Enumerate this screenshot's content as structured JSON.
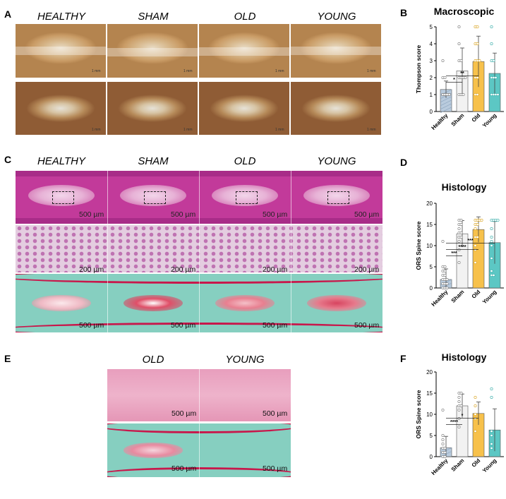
{
  "panels": {
    "A": {
      "label": "A",
      "groups": [
        "HEALTHY",
        "SHAM",
        "OLD",
        "YOUNG"
      ],
      "scale": "1 mm"
    },
    "B": {
      "label": "B"
    },
    "C": {
      "label": "C",
      "groups": [
        "HEALTHY",
        "SHAM",
        "OLD",
        "YOUNG"
      ],
      "scale_top": "500 µm",
      "scale_mid": "200 µm",
      "scale_bot": "500 µm"
    },
    "D": {
      "label": "D"
    },
    "E": {
      "label": "E",
      "groups": [
        "OLD",
        "YOUNG"
      ],
      "scale": "500 µm"
    },
    "F": {
      "label": "F"
    }
  },
  "colors": {
    "healthy": "#b9cbdd",
    "sham": "#f2f2f2",
    "old": "#f7c14b",
    "young": "#5cc7c4"
  },
  "chart_data": [
    {
      "id": "B",
      "type": "bar",
      "title": "Macroscopic",
      "categories": [
        "Healthy",
        "Sham",
        "Old",
        "Young"
      ],
      "values": [
        1.3,
        2.4,
        2.95,
        2.25
      ],
      "errors": [
        0.5,
        1.35,
        1.5,
        1.2
      ],
      "points": [
        [
          1,
          1,
          1,
          1,
          1,
          1,
          1,
          1,
          1,
          1,
          1,
          1,
          1,
          1,
          1,
          2,
          2,
          3
        ],
        [
          1,
          1,
          1,
          2,
          2,
          2,
          2,
          3,
          3,
          4,
          5
        ],
        [
          1,
          1,
          2,
          2,
          3,
          3,
          3,
          4,
          4,
          5,
          5
        ],
        [
          1,
          1,
          1,
          1,
          2,
          2,
          2,
          3,
          3,
          4,
          5
        ]
      ],
      "ylabel": "Thompson score",
      "ylim": [
        0,
        5
      ],
      "yticks": [
        0,
        1,
        2,
        3,
        4,
        5
      ],
      "significance": [
        {
          "from": 0,
          "to": 1,
          "text": "*"
        },
        {
          "from": 0,
          "to": 2,
          "text": "**"
        }
      ]
    },
    {
      "id": "D",
      "type": "bar",
      "title": "Histology",
      "categories": [
        "Healthy",
        "Sham",
        "Old",
        "Young"
      ],
      "values": [
        2,
        12.8,
        13.8,
        10.7
      ],
      "errors": [
        2.5,
        3.1,
        3.0,
        5.0
      ],
      "points": [
        [
          0,
          0,
          0,
          1,
          1,
          1,
          2,
          2,
          2,
          3,
          3,
          4,
          4,
          5,
          5,
          11
        ],
        [
          6,
          9,
          11,
          12,
          12,
          13,
          13,
          14,
          15,
          15,
          16,
          16
        ],
        [
          6,
          9,
          10,
          12,
          12,
          14,
          15,
          15,
          16,
          16,
          16,
          16
        ],
        [
          3,
          3,
          4,
          7,
          10,
          11,
          12,
          14,
          16,
          16,
          16,
          16
        ]
      ],
      "ylabel": "ORS Spine score",
      "ylim": [
        0,
        20
      ],
      "yticks": [
        0,
        5,
        10,
        15,
        20
      ],
      "significance": [
        {
          "from": 0,
          "to": 1,
          "text": "***"
        },
        {
          "from": 0,
          "to": 2,
          "text": "****"
        },
        {
          "from": 0,
          "to": 3,
          "text": "***"
        }
      ]
    },
    {
      "id": "F",
      "type": "bar",
      "title": "Histology",
      "categories": [
        "Healthy",
        "Sham",
        "Old",
        "Young"
      ],
      "values": [
        2.1,
        12,
        10.2,
        6.3
      ],
      "errors": [
        2.7,
        2.8,
        2.7,
        5.0
      ],
      "points": [
        [
          0,
          0,
          1,
          1,
          2,
          2,
          3,
          4,
          5,
          11
        ],
        [
          7,
          9,
          11,
          12,
          12,
          13,
          14,
          15,
          15
        ],
        [
          6,
          9,
          10,
          12,
          14
        ],
        [
          2,
          3,
          5,
          6,
          14,
          16
        ]
      ],
      "ylabel": "ORS Spine score",
      "ylim": [
        0,
        20
      ],
      "yticks": [
        0,
        5,
        10,
        15,
        20
      ],
      "significance": [
        {
          "from": 0,
          "to": 1,
          "text": "****"
        },
        {
          "from": 0,
          "to": 2,
          "text": "*"
        }
      ]
    }
  ]
}
